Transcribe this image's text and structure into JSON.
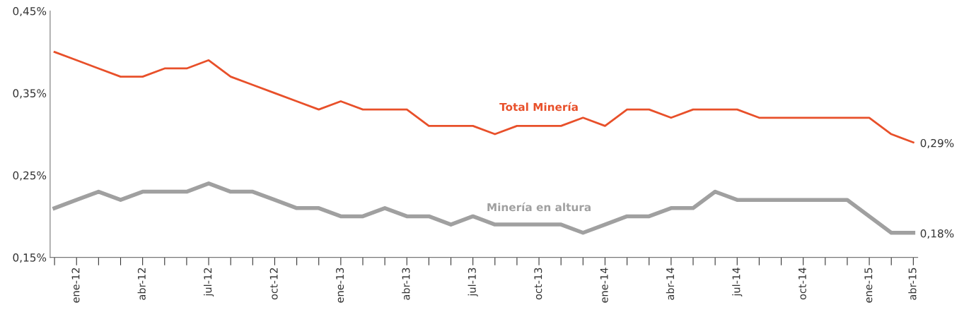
{
  "chart_data": {
    "type": "line",
    "categories": [
      null,
      "ene-12",
      null,
      null,
      "abr-12",
      null,
      null,
      "jul-12",
      null,
      null,
      "oct-12",
      null,
      null,
      "ene-13",
      null,
      null,
      "abr-13",
      null,
      null,
      "jul-13",
      null,
      null,
      "oct-13",
      null,
      null,
      "ene-14",
      null,
      null,
      "abr-14",
      null,
      null,
      "jul-14",
      null,
      null,
      "oct-14",
      null,
      null,
      "ene-15",
      null,
      "abr-15"
    ],
    "series": [
      {
        "name": "Total Minería",
        "color": "#e8502a",
        "values": [
          0.4,
          0.39,
          0.38,
          0.37,
          0.37,
          0.38,
          0.38,
          0.39,
          0.37,
          0.36,
          0.35,
          0.34,
          0.33,
          0.34,
          0.33,
          0.33,
          0.33,
          0.31,
          0.31,
          0.31,
          0.3,
          0.31,
          0.31,
          0.31,
          0.32,
          0.31,
          0.33,
          0.33,
          0.32,
          0.33,
          0.33,
          0.33,
          0.32,
          0.32,
          0.32,
          0.32,
          0.32,
          0.32,
          0.3,
          0.29
        ],
        "value_labels": [
          null,
          null,
          null,
          null,
          null,
          null,
          null,
          null,
          null,
          null,
          null,
          null,
          null,
          null,
          null,
          null,
          null,
          null,
          null,
          null,
          null,
          null,
          null,
          null,
          null,
          null,
          null,
          null,
          null,
          null,
          null,
          null,
          null,
          null,
          null,
          null,
          null,
          null,
          null,
          "0,29%"
        ]
      },
      {
        "name": "Minería en altura",
        "color": "#a0a0a0",
        "values": [
          0.21,
          0.22,
          0.23,
          0.22,
          0.23,
          0.23,
          0.23,
          0.24,
          0.23,
          0.23,
          0.22,
          0.21,
          0.21,
          0.2,
          0.2,
          0.21,
          0.2,
          0.2,
          0.19,
          0.2,
          0.19,
          0.19,
          0.19,
          0.19,
          0.18,
          0.19,
          0.2,
          0.2,
          0.21,
          0.21,
          0.23,
          0.22,
          0.22,
          0.22,
          0.22,
          0.22,
          0.22,
          0.2,
          0.18,
          0.18
        ],
        "value_labels": [
          null,
          null,
          null,
          null,
          null,
          null,
          null,
          null,
          null,
          null,
          null,
          null,
          null,
          null,
          null,
          null,
          null,
          null,
          null,
          null,
          null,
          null,
          null,
          null,
          null,
          null,
          null,
          null,
          null,
          null,
          null,
          null,
          null,
          null,
          null,
          null,
          null,
          null,
          null,
          "0,18%"
        ]
      }
    ],
    "ylim": [
      0.15,
      0.45
    ],
    "yticks": [
      {
        "value": 0.15,
        "label": "0,15%"
      },
      {
        "value": 0.25,
        "label": "0,25%"
      },
      {
        "value": 0.35,
        "label": "0,35%"
      },
      {
        "value": 0.45,
        "label": "0,45%"
      }
    ],
    "grid": false,
    "legend": false,
    "marker": "none",
    "line_style": "solid"
  }
}
